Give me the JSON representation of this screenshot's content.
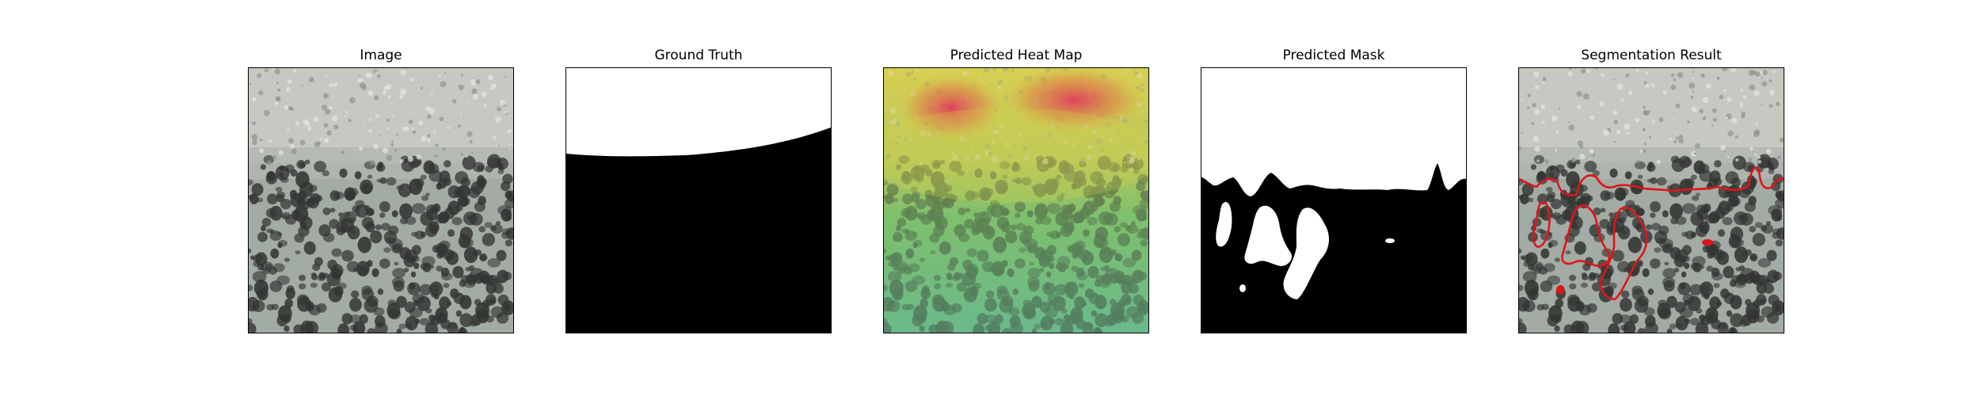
{
  "panels": [
    {
      "id": "image",
      "title": "Image"
    },
    {
      "id": "ground_truth",
      "title": "Ground Truth"
    },
    {
      "id": "heatmap",
      "title": "Predicted Heat Map"
    },
    {
      "id": "predicted_mask",
      "title": "Predicted Mask"
    },
    {
      "id": "segmentation",
      "title": "Segmentation Result"
    }
  ],
  "colors": {
    "texture_top": "#c9cbc4",
    "texture_bottom": "#9da79f",
    "spot": "#333533",
    "mask_fg": "#ffffff",
    "mask_bg": "#000000",
    "contour": "#e0141b",
    "heat_low": "#5dbf6e",
    "heat_mid": "#d8d24a",
    "heat_high": "#e8345a"
  }
}
